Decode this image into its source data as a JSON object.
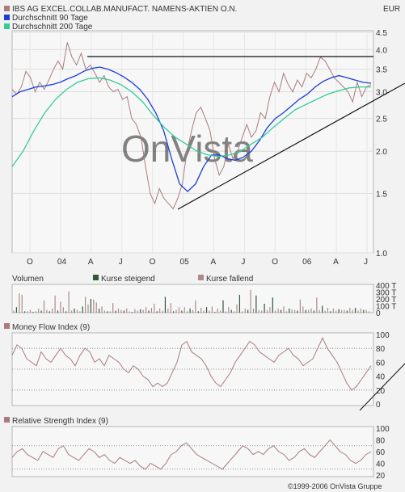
{
  "chart_data": [
    {
      "type": "line",
      "title": "IBS AG EXCEL.COLLAB.MANUFACT. NAMENS-AKTIEN O.N.",
      "currency": "EUR",
      "watermark": "OnVista",
      "ylim": [
        1.0,
        4.5
      ],
      "yscale": "log",
      "yticks": [
        "1.0",
        "1.5",
        "2.0",
        "2.5",
        "3.0",
        "3.5",
        "4.0",
        "4.5"
      ],
      "xticks": [
        "O",
        "04",
        "A",
        "J",
        "O",
        "05",
        "A",
        "J",
        "O",
        "06",
        "A",
        "J"
      ],
      "series": [
        {
          "name": "",
          "color": "#a87c7c",
          "values": [
            3.05,
            2.95,
            3.1,
            3.45,
            3.3,
            3.0,
            3.2,
            3.05,
            3.25,
            3.5,
            3.7,
            3.5,
            4.2,
            3.8,
            3.6,
            3.9,
            3.5,
            3.6,
            3.4,
            3.2,
            3.35,
            3.1,
            3.0,
            3.05,
            2.85,
            2.9,
            2.5,
            2.4,
            2.2,
            1.8,
            1.5,
            1.4,
            1.55,
            1.45,
            1.4,
            1.35,
            1.45,
            1.6,
            2.0,
            2.3,
            2.6,
            2.7,
            2.5,
            2.3,
            1.9,
            1.7,
            1.8,
            2.1,
            1.9,
            2.0,
            2.2,
            2.4,
            2.2,
            2.3,
            2.6,
            2.5,
            2.9,
            3.2,
            3.0,
            3.4,
            3.15,
            3.0,
            3.25,
            3.1,
            3.4,
            3.3,
            3.5,
            3.8,
            3.7,
            3.5,
            3.3,
            3.2,
            3.1,
            3.0,
            2.8,
            3.2,
            2.9,
            3.1,
            3.15
          ]
        },
        {
          "name": "Durchschnitt 90 Tage",
          "color": "#1a3fd6",
          "values": [
            2.9,
            3.0,
            3.05,
            3.1,
            3.12,
            3.15,
            3.2,
            3.28,
            3.35,
            3.45,
            3.52,
            3.55,
            3.5,
            3.42,
            3.32,
            3.2,
            3.05,
            2.85,
            2.6,
            2.3,
            1.9,
            1.6,
            1.52,
            1.6,
            1.8,
            1.95,
            1.95,
            1.9,
            1.88,
            1.92,
            2.0,
            2.15,
            2.35,
            2.5,
            2.6,
            2.72,
            2.85,
            2.95,
            3.1,
            3.22,
            3.3,
            3.35,
            3.3,
            3.25,
            3.2,
            3.18
          ]
        },
        {
          "name": "Durchschnitt 200 Tage",
          "color": "#33cc99",
          "values": [
            1.8,
            2.0,
            2.3,
            2.6,
            2.85,
            3.05,
            3.2,
            3.28,
            3.3,
            3.25,
            3.15,
            3.0,
            2.8,
            2.55,
            2.35,
            2.2,
            2.1,
            2.0,
            1.95,
            1.93,
            1.95,
            2.0,
            2.1,
            2.2,
            2.35,
            2.5,
            2.65,
            2.75,
            2.85,
            2.95,
            3.02,
            3.08,
            3.1,
            3.1
          ]
        }
      ]
    },
    {
      "type": "bar",
      "title": "Volumen",
      "legend": [
        "Kurse steigend",
        "Kurse fallend"
      ],
      "colors": {
        "steigend": "#2f5a3a",
        "fallend": "#b08a8a"
      },
      "ylim": [
        0,
        400
      ],
      "yticks": [
        "0",
        "100 T",
        "200 T",
        "300 T",
        "400 T"
      ],
      "values": [
        30,
        80,
        280,
        260,
        20,
        20,
        40,
        10,
        20,
        60,
        30,
        180,
        40,
        20,
        60,
        250,
        30,
        160,
        80,
        20,
        310,
        30,
        60,
        40,
        20,
        90,
        230,
        120,
        200,
        190,
        150,
        60,
        90,
        30,
        20,
        20,
        140,
        30,
        60,
        40,
        30,
        60,
        20,
        10,
        50,
        30,
        50,
        40,
        80,
        30,
        70,
        130,
        20,
        60,
        30,
        230,
        60,
        140,
        20,
        40,
        80,
        30,
        80,
        20,
        60,
        40,
        180,
        20,
        70,
        30,
        80,
        30,
        90,
        10,
        60,
        30,
        180,
        20,
        80,
        40,
        20,
        120,
        260,
        20,
        60,
        40,
        330,
        60,
        250,
        40,
        30,
        130,
        40,
        80,
        220,
        30,
        60,
        40,
        90,
        20,
        60,
        50,
        40,
        30,
        190,
        90,
        40,
        40,
        60,
        30,
        220,
        40,
        100,
        30,
        70,
        20,
        60,
        30,
        50,
        40,
        40,
        30,
        70,
        40,
        70,
        30,
        60,
        40,
        40,
        20
      ]
    },
    {
      "type": "line",
      "title": "Money Flow Index (9)",
      "ylim": [
        0,
        100
      ],
      "yticks": [
        "0",
        "20",
        "40",
        "60",
        "80",
        "100"
      ],
      "series": [
        {
          "name": "",
          "color": "#a87c7c",
          "values": [
            70,
            85,
            80,
            65,
            60,
            55,
            75,
            65,
            60,
            70,
            80,
            70,
            65,
            55,
            70,
            80,
            75,
            60,
            65,
            55,
            70,
            65,
            60,
            50,
            45,
            55,
            50,
            40,
            35,
            25,
            30,
            25,
            30,
            45,
            60,
            85,
            90,
            75,
            70,
            65,
            55,
            40,
            30,
            25,
            35,
            45,
            60,
            70,
            80,
            90,
            85,
            75,
            70,
            65,
            60,
            70,
            75,
            80,
            70,
            65,
            55,
            60,
            65,
            80,
            95,
            80,
            70,
            60,
            45,
            30,
            20,
            25,
            35,
            45,
            55
          ]
        }
      ]
    },
    {
      "type": "line",
      "title": "Relative Strength Index (9)",
      "ylim": [
        20,
        100
      ],
      "yticks": [
        "20",
        "40",
        "60",
        "80",
        "100"
      ],
      "series": [
        {
          "name": "",
          "color": "#a87c7c",
          "values": [
            50,
            60,
            65,
            55,
            50,
            45,
            60,
            55,
            50,
            65,
            70,
            55,
            50,
            45,
            55,
            65,
            60,
            50,
            55,
            45,
            40,
            50,
            45,
            40,
            45,
            35,
            30,
            40,
            35,
            30,
            40,
            55,
            60,
            70,
            75,
            65,
            55,
            50,
            45,
            40,
            35,
            30,
            40,
            50,
            60,
            70,
            65,
            55,
            60,
            55,
            65,
            70,
            60,
            55,
            45,
            50,
            60,
            65,
            55,
            50,
            60,
            70,
            80,
            70,
            60,
            55,
            45,
            40,
            45,
            55,
            60
          ]
        }
      ]
    }
  ],
  "copyright": "©1999-2006 OnVista Gruppe"
}
